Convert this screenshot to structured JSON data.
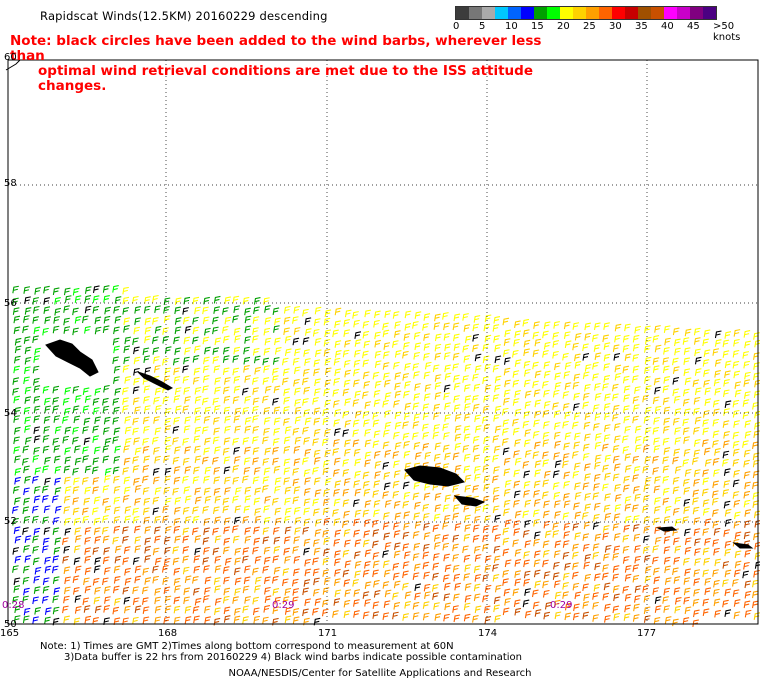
{
  "title": "Rapidscat Winds(12.5KM) 20160229 descending",
  "note_line1": "Note: black circles have been added to the wind barbs, wherever less than",
  "note_line2": "optimal wind retrieval conditions are met due to the ISS attitude changes.",
  "colorbar": {
    "colors": [
      "#3c3c3c",
      "#777777",
      "#aaaaaa",
      "#00c8ff",
      "#0064ff",
      "#0000ff",
      "#00a000",
      "#00ff00",
      "#ffff00",
      "#ffd200",
      "#ffa000",
      "#ff6400",
      "#ff0000",
      "#c80000",
      "#a05000",
      "#c85000",
      "#ff00ff",
      "#c800c8",
      "#800080",
      "#4b0082"
    ],
    "labels": [
      "0",
      "5",
      "10",
      "15",
      "20",
      "25",
      "30",
      "35",
      "40",
      "45",
      ">50 knots"
    ]
  },
  "y_labels": [
    "60",
    "58",
    "56",
    "54",
    "52",
    "50"
  ],
  "x_labels": [
    "165",
    "168",
    "171",
    "174",
    "177"
  ],
  "time_labels": [
    "0:28",
    "0:29",
    "0:29"
  ],
  "footer_line1": "Note: 1) Times are GMT 2)Times along bottom correspond to measurement at 60N",
  "footer_line2": "3)Data buffer is 22 hrs from 20160229 4) Black wind barbs indicate possible contamination",
  "credit": "NOAA/NESDIS/Center for Satellite Applications and Research"
}
